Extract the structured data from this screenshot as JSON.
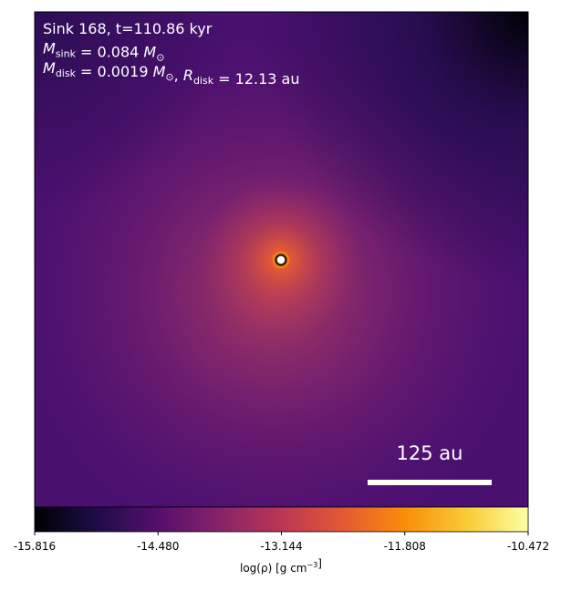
{
  "chart_data": {
    "type": "image",
    "title_lines": [
      [
        {
          "text": "Sink 168, t=110.86 kyr"
        }
      ],
      [
        {
          "text": "M",
          "sub": "sink"
        },
        {
          "text": " = 0.084 "
        },
        {
          "text": "M",
          "sub": "⊙"
        }
      ],
      [
        {
          "text": "M",
          "sub": "disk"
        },
        {
          "text": " = 0.0019 "
        },
        {
          "text": "M",
          "sub": "⊙"
        },
        {
          "text": ", "
        },
        {
          "text": "R",
          "sub": "disk"
        },
        {
          "text": " = 12.13 au"
        }
      ]
    ],
    "scale_bar_label": "125 au",
    "colorbar": {
      "clim": [
        -15.816,
        -10.472
      ],
      "ticks": [
        -15.816,
        {
          "value": -14.48,
          "label": "-14.480"
        },
        -13.144,
        -11.808,
        -10.472
      ],
      "label": [
        {
          "text": "log(ρ) [g cm",
          "sup": "−3"
        },
        {
          "text": "]"
        }
      ]
    }
  }
}
